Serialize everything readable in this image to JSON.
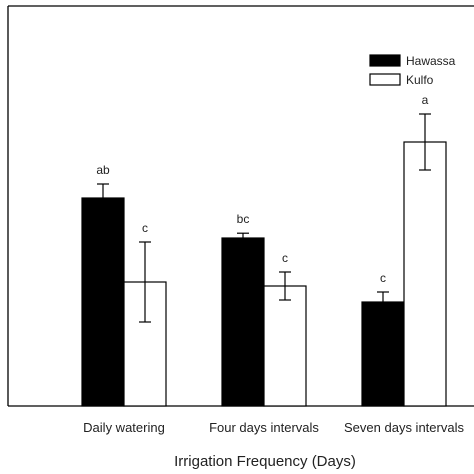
{
  "chart_data": {
    "type": "bar",
    "title": "",
    "xlabel": "Irrigation Frequency (Days)",
    "ylabel": "",
    "ylim": [
      0,
      100
    ],
    "categories": [
      "Daily watering",
      "Four days intervals",
      "Seven days intervals"
    ],
    "series": [
      {
        "name": "Hawassa",
        "color": "#000000",
        "values": [
          52.0,
          42.0,
          26.0
        ],
        "errors": [
          3.5,
          1.2,
          2.5
        ],
        "letters": [
          "ab",
          "bc",
          "c"
        ]
      },
      {
        "name": "Kulfo",
        "color": "#ffffff",
        "values": [
          31.0,
          30.0,
          66.0
        ],
        "errors": [
          10.0,
          3.5,
          7.0
        ],
        "letters": [
          "c",
          "c",
          "a"
        ]
      }
    ],
    "legend": {
      "placement": "top-right"
    },
    "grid": false
  }
}
